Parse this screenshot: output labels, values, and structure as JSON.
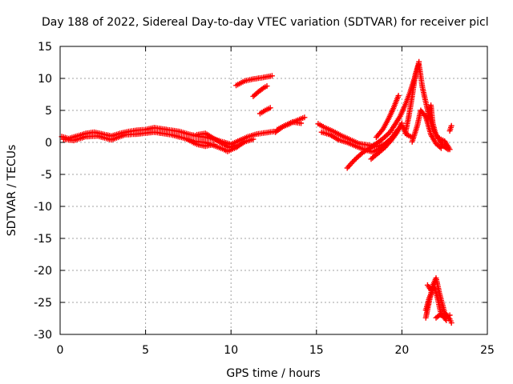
{
  "chart_data": {
    "type": "scatter",
    "title": "Day 188 of 2022, Sidereal Day-to-day VTEC variation (SDTVAR) for receiver picl",
    "xlabel": "GPS time / hours",
    "ylabel": "SDTVAR / TECUs",
    "xlim": [
      0,
      25
    ],
    "ylim": [
      -30,
      15
    ],
    "xticks": [
      0,
      5,
      10,
      15,
      20,
      25
    ],
    "yticks": [
      -30,
      -25,
      -20,
      -15,
      -10,
      -5,
      0,
      5,
      10,
      15
    ],
    "xtick_labels": [
      "0",
      "5",
      "10",
      "15",
      "20",
      "25"
    ],
    "ytick_labels": [
      "-30",
      "-25",
      "-20",
      "-15",
      "-10",
      "-5",
      "0",
      "5",
      "10",
      "15"
    ],
    "grid": true,
    "marker": "plus",
    "color": "#ff0000",
    "series": [
      {
        "name": "SDTVAR",
        "tracks": [
          [
            [
              0.1,
              0.9
            ],
            [
              0.5,
              0.6
            ],
            [
              1.0,
              1.0
            ],
            [
              1.5,
              1.4
            ],
            [
              2.0,
              1.6
            ],
            [
              2.5,
              1.3
            ],
            [
              3.0,
              1.0
            ],
            [
              3.5,
              1.4
            ],
            [
              4.0,
              1.7
            ],
            [
              4.5,
              1.9
            ],
            [
              5.0,
              2.0
            ],
            [
              5.5,
              2.3
            ],
            [
              6.0,
              2.1
            ],
            [
              6.5,
              1.9
            ],
            [
              7.0,
              1.7
            ],
            [
              7.5,
              1.3
            ],
            [
              8.0,
              1.0
            ],
            [
              8.5,
              0.8
            ],
            [
              9.0,
              0.5
            ],
            [
              9.5,
              0.1
            ],
            [
              10.0,
              -0.3
            ],
            [
              10.4,
              0.2
            ],
            [
              11.0,
              0.9
            ],
            [
              11.5,
              1.3
            ],
            [
              12.0,
              1.5
            ],
            [
              12.5,
              1.7
            ]
          ],
          [
            [
              0.2,
              0.5
            ],
            [
              0.8,
              0.3
            ],
            [
              1.5,
              0.9
            ],
            [
              2.2,
              1.0
            ],
            [
              3.0,
              0.4
            ],
            [
              3.8,
              1.2
            ],
            [
              4.5,
              1.3
            ],
            [
              5.5,
              1.6
            ],
            [
              6.5,
              1.2
            ],
            [
              7.2,
              0.7
            ],
            [
              7.8,
              0.2
            ],
            [
              8.5,
              0.0
            ],
            [
              9.0,
              -0.5
            ],
            [
              9.5,
              -1.0
            ],
            [
              9.8,
              -1.4
            ],
            [
              10.3,
              -0.8
            ],
            [
              10.8,
              0.1
            ],
            [
              11.3,
              0.5
            ]
          ],
          [
            [
              8.0,
              1.2
            ],
            [
              8.5,
              1.4
            ],
            [
              9.0,
              0.6
            ],
            [
              9.5,
              -0.2
            ],
            [
              9.9,
              -0.8
            ],
            [
              10.3,
              -0.4
            ]
          ],
          [
            [
              7.5,
              0.4
            ],
            [
              8.0,
              -0.3
            ],
            [
              8.5,
              -0.6
            ],
            [
              9.0,
              -0.3
            ]
          ],
          [
            [
              10.3,
              8.9
            ],
            [
              10.8,
              9.6
            ],
            [
              11.3,
              9.9
            ],
            [
              11.8,
              10.1
            ],
            [
              12.4,
              10.4
            ]
          ],
          [
            [
              11.3,
              7.2
            ],
            [
              11.6,
              7.9
            ],
            [
              11.9,
              8.5
            ],
            [
              12.1,
              8.8
            ]
          ],
          [
            [
              11.7,
              4.5
            ],
            [
              12.0,
              5.0
            ],
            [
              12.3,
              5.4
            ]
          ],
          [
            [
              12.6,
              1.6
            ],
            [
              13.0,
              2.4
            ],
            [
              13.5,
              3.0
            ],
            [
              14.0,
              3.6
            ],
            [
              14.3,
              3.9
            ]
          ],
          [
            [
              12.7,
              2.0
            ],
            [
              13.2,
              2.7
            ],
            [
              13.6,
              3.2
            ],
            [
              14.1,
              3.0
            ]
          ],
          [
            [
              15.1,
              2.9
            ],
            [
              15.5,
              2.3
            ],
            [
              16.0,
              1.7
            ],
            [
              16.5,
              1.0
            ],
            [
              17.0,
              0.4
            ],
            [
              17.5,
              -0.2
            ],
            [
              18.0,
              -0.4
            ],
            [
              18.5,
              -0.7
            ],
            [
              19.0,
              -0.3
            ],
            [
              19.4,
              0.7
            ],
            [
              19.7,
              1.8
            ],
            [
              20.0,
              2.6
            ],
            [
              20.3,
              1.2
            ],
            [
              20.6,
              0.8
            ]
          ],
          [
            [
              15.3,
              1.6
            ],
            [
              15.8,
              1.2
            ],
            [
              16.3,
              0.4
            ],
            [
              16.8,
              0.0
            ],
            [
              17.3,
              -0.6
            ],
            [
              17.8,
              -1.1
            ],
            [
              18.3,
              -1.5
            ],
            [
              18.8,
              -0.8
            ],
            [
              19.2,
              0.2
            ]
          ],
          [
            [
              16.8,
              -4.0
            ],
            [
              17.1,
              -3.1
            ],
            [
              17.4,
              -2.3
            ],
            [
              17.7,
              -1.6
            ],
            [
              18.0,
              -1.1
            ],
            [
              18.5,
              -0.2
            ],
            [
              18.9,
              0.6
            ],
            [
              19.3,
              1.6
            ],
            [
              19.6,
              2.8
            ],
            [
              19.9,
              4.1
            ],
            [
              20.2,
              5.9
            ],
            [
              20.5,
              8.0
            ],
            [
              20.8,
              10.5
            ],
            [
              21.0,
              12.6
            ]
          ],
          [
            [
              18.2,
              -2.6
            ],
            [
              18.6,
              -1.7
            ],
            [
              19.0,
              -0.8
            ],
            [
              19.4,
              0.4
            ],
            [
              19.7,
              1.5
            ],
            [
              20.0,
              3.0
            ]
          ],
          [
            [
              18.5,
              0.8
            ],
            [
              18.9,
              2.1
            ],
            [
              19.2,
              3.6
            ],
            [
              19.5,
              5.3
            ],
            [
              19.8,
              7.3
            ]
          ],
          [
            [
              20.2,
              1.4
            ],
            [
              20.4,
              4.0
            ],
            [
              20.6,
              7.2
            ],
            [
              20.8,
              10.8
            ],
            [
              21.0,
              12.2
            ],
            [
              21.2,
              8.6
            ],
            [
              21.5,
              5.1
            ],
            [
              21.8,
              2.2
            ],
            [
              22.1,
              0.8
            ],
            [
              22.4,
              -0.5
            ],
            [
              22.7,
              -1.1
            ]
          ],
          [
            [
              20.6,
              0.1
            ],
            [
              20.9,
              2.6
            ],
            [
              21.1,
              5.0
            ],
            [
              21.4,
              4.0
            ],
            [
              21.7,
              1.2
            ],
            [
              22.0,
              -0.2
            ],
            [
              22.3,
              -0.9
            ]
          ],
          [
            [
              21.5,
              3.5
            ],
            [
              21.7,
              5.8
            ],
            [
              21.8,
              3.1
            ],
            [
              22.0,
              1.0
            ]
          ],
          [
            [
              22.2,
              0.6
            ],
            [
              22.5,
              0.2
            ],
            [
              22.8,
              -1.1
            ]
          ],
          [
            [
              22.8,
              1.8
            ],
            [
              22.9,
              2.6
            ]
          ],
          [
            [
              21.4,
              -27.4
            ],
            [
              21.6,
              -24.8
            ],
            [
              21.8,
              -22.4
            ],
            [
              22.0,
              -21.2
            ],
            [
              22.2,
              -23.6
            ],
            [
              22.5,
              -26.6
            ],
            [
              22.8,
              -27.6
            ],
            [
              22.9,
              -28.2
            ]
          ],
          [
            [
              21.5,
              -22.3
            ],
            [
              21.7,
              -23.1
            ],
            [
              21.9,
              -22.6
            ],
            [
              22.1,
              -24.5
            ],
            [
              22.3,
              -27.0
            ],
            [
              22.6,
              -27.2
            ],
            [
              22.8,
              -27.0
            ]
          ],
          [
            [
              21.4,
              -26.2
            ],
            [
              21.6,
              -24.3
            ],
            [
              21.8,
              -23.2
            ]
          ],
          [
            [
              22.0,
              -27.4
            ],
            [
              22.3,
              -26.8
            ],
            [
              22.6,
              -27.8
            ]
          ]
        ]
      }
    ]
  }
}
